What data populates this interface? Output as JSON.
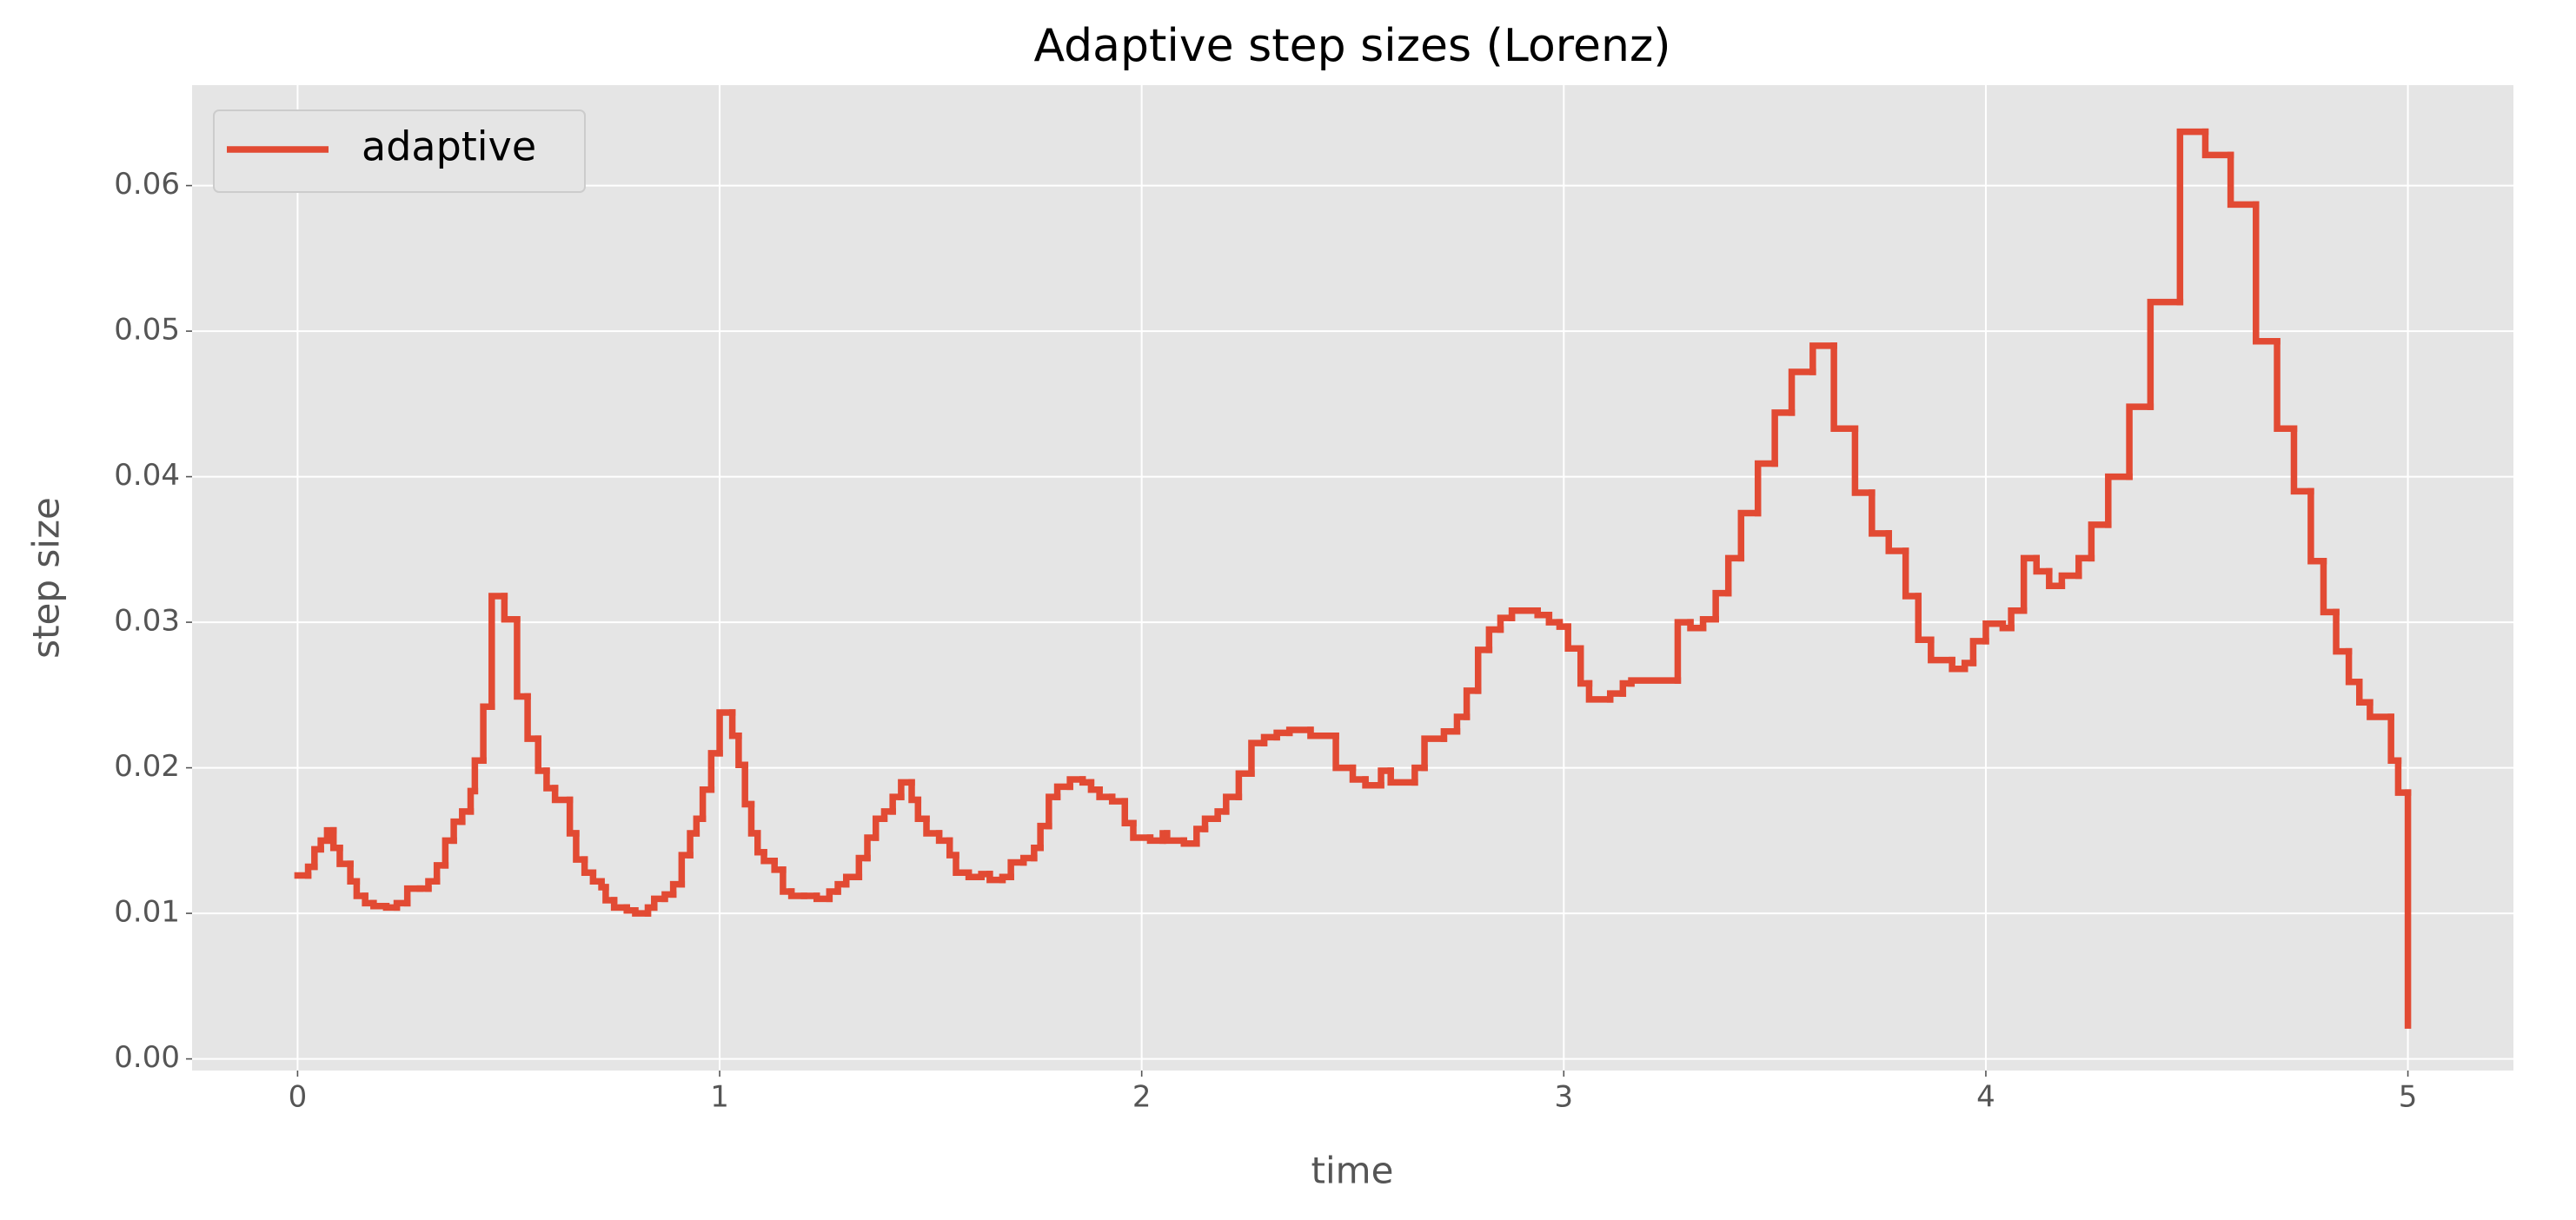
{
  "chart_data": {
    "type": "line",
    "drawstyle": "steps-post",
    "title": "Adaptive step sizes (Lorenz)",
    "xlabel": "time",
    "ylabel": "step size",
    "x": [
      0.0,
      0.025,
      0.04,
      0.055,
      0.07,
      0.085,
      0.1,
      0.125,
      0.14,
      0.16,
      0.18,
      0.21,
      0.235,
      0.26,
      0.29,
      0.31,
      0.33,
      0.35,
      0.37,
      0.39,
      0.41,
      0.42,
      0.44,
      0.46,
      0.49,
      0.52,
      0.545,
      0.57,
      0.59,
      0.61,
      0.645,
      0.66,
      0.68,
      0.7,
      0.72,
      0.73,
      0.75,
      0.78,
      0.8,
      0.83,
      0.845,
      0.87,
      0.89,
      0.91,
      0.93,
      0.945,
      0.96,
      0.98,
      1.0,
      1.03,
      1.045,
      1.06,
      1.075,
      1.09,
      1.105,
      1.13,
      1.15,
      1.17,
      1.2,
      1.23,
      1.26,
      1.28,
      1.3,
      1.33,
      1.35,
      1.37,
      1.39,
      1.41,
      1.43,
      1.455,
      1.47,
      1.49,
      1.52,
      1.545,
      1.56,
      1.59,
      1.62,
      1.64,
      1.67,
      1.69,
      1.72,
      1.745,
      1.76,
      1.78,
      1.8,
      1.83,
      1.86,
      1.88,
      1.9,
      1.93,
      1.96,
      1.98,
      2.02,
      2.05,
      2.06,
      2.1,
      2.13,
      2.15,
      2.18,
      2.2,
      2.23,
      2.26,
      2.29,
      2.32,
      2.35,
      2.4,
      2.46,
      2.5,
      2.53,
      2.567,
      2.59,
      2.647,
      2.67,
      2.716,
      2.747,
      2.77,
      2.797,
      2.823,
      2.85,
      2.877,
      2.938,
      2.965,
      2.99,
      3.01,
      3.04,
      3.06,
      3.11,
      3.14,
      3.16,
      3.27,
      3.3,
      3.33,
      3.36,
      3.39,
      3.42,
      3.46,
      3.5,
      3.54,
      3.59,
      3.64,
      3.69,
      3.73,
      3.77,
      3.81,
      3.84,
      3.87,
      3.92,
      3.95,
      3.97,
      4.0,
      4.04,
      4.06,
      4.09,
      4.12,
      4.15,
      4.18,
      4.22,
      4.25,
      4.29,
      4.34,
      4.39,
      4.46,
      4.52,
      4.58,
      4.64,
      4.69,
      4.73,
      4.77,
      4.8,
      4.83,
      4.86,
      4.885,
      4.91,
      4.96,
      4.977,
      5.0
    ],
    "series": [
      {
        "name": "adaptive",
        "color": "#e24a33",
        "values": [
          0.0126,
          0.0132,
          0.0144,
          0.015,
          0.0157,
          0.0145,
          0.0134,
          0.0122,
          0.0112,
          0.0107,
          0.0105,
          0.0104,
          0.0107,
          0.0117,
          0.0117,
          0.0122,
          0.0133,
          0.015,
          0.0163,
          0.017,
          0.0184,
          0.0205,
          0.0242,
          0.0318,
          0.0302,
          0.0249,
          0.022,
          0.0198,
          0.0186,
          0.0178,
          0.0155,
          0.0137,
          0.0128,
          0.0122,
          0.0118,
          0.0109,
          0.0104,
          0.0102,
          0.01,
          0.0104,
          0.011,
          0.0113,
          0.012,
          0.014,
          0.0155,
          0.0165,
          0.0185,
          0.021,
          0.0238,
          0.0222,
          0.0202,
          0.0175,
          0.0155,
          0.0142,
          0.0136,
          0.013,
          0.0115,
          0.0112,
          0.0112,
          0.011,
          0.0115,
          0.012,
          0.0125,
          0.0138,
          0.0152,
          0.0165,
          0.017,
          0.018,
          0.019,
          0.0178,
          0.0165,
          0.0155,
          0.015,
          0.014,
          0.0128,
          0.0125,
          0.0127,
          0.0123,
          0.0125,
          0.0135,
          0.0138,
          0.0145,
          0.016,
          0.018,
          0.0187,
          0.0192,
          0.019,
          0.0185,
          0.018,
          0.0177,
          0.0162,
          0.0152,
          0.015,
          0.0155,
          0.015,
          0.0148,
          0.0158,
          0.0165,
          0.017,
          0.018,
          0.0196,
          0.0217,
          0.0221,
          0.0224,
          0.0226,
          0.0222,
          0.02,
          0.0192,
          0.0188,
          0.0198,
          0.019,
          0.02,
          0.022,
          0.0225,
          0.0235,
          0.0253,
          0.0281,
          0.0295,
          0.0303,
          0.0308,
          0.0305,
          0.03,
          0.0297,
          0.0282,
          0.0258,
          0.0247,
          0.0251,
          0.0258,
          0.026,
          0.03,
          0.0296,
          0.0302,
          0.032,
          0.0344,
          0.0375,
          0.0409,
          0.0444,
          0.0472,
          0.049,
          0.0433,
          0.0389,
          0.0361,
          0.0349,
          0.0318,
          0.0288,
          0.0274,
          0.0268,
          0.0272,
          0.0287,
          0.0299,
          0.0296,
          0.0308,
          0.0344,
          0.0335,
          0.0325,
          0.0332,
          0.0344,
          0.0367,
          0.04,
          0.0448,
          0.052,
          0.0637,
          0.0621,
          0.0587,
          0.0493,
          0.0433,
          0.039,
          0.0342,
          0.0307,
          0.028,
          0.0259,
          0.0245,
          0.0235,
          0.0205,
          0.0183,
          0.0023
        ]
      }
    ],
    "xlim": [
      -0.25,
      5.25
    ],
    "xticks": [
      0,
      1,
      2,
      3,
      4,
      5
    ],
    "ylim": [
      -0.0008,
      0.0669
    ],
    "yticks": [
      {
        "value": 0,
        "label": "0.00"
      },
      0.01,
      0.02,
      0.03,
      0.04,
      0.05,
      0.06
    ],
    "grid": true,
    "legend": "upper left"
  }
}
